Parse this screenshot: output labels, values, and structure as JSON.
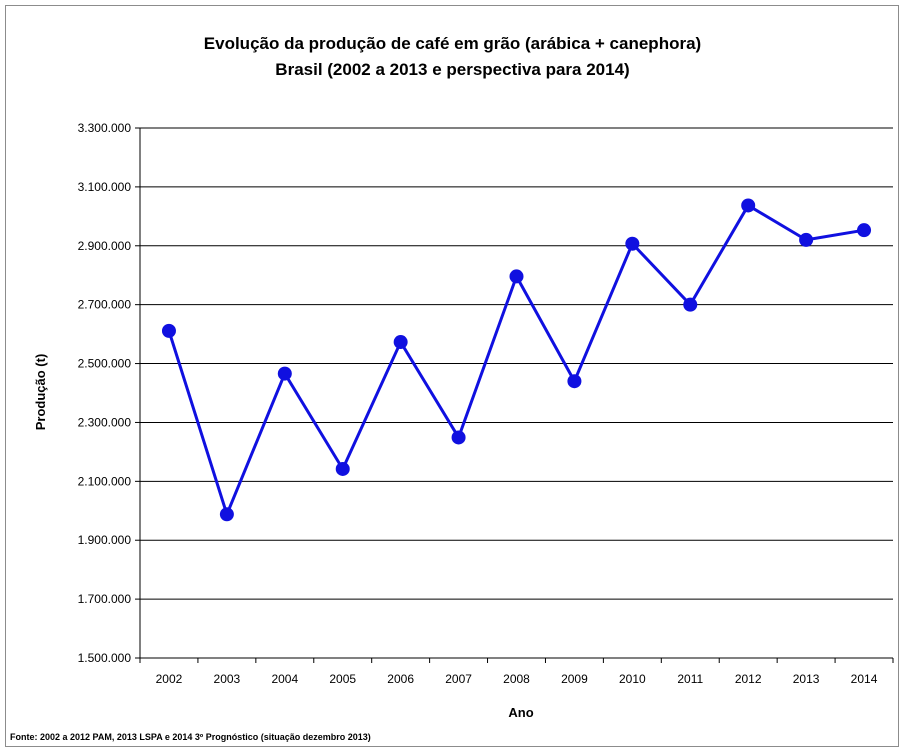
{
  "chart_data": {
    "type": "line",
    "title": "Evolução da produção de café em grão (arábica + canephora)",
    "subtitle": "Brasil (2002 a 2013 e perspectiva para 2014)",
    "xlabel": "Ano",
    "ylabel": "Produção (t)",
    "categories": [
      "2002",
      "2003",
      "2004",
      "2005",
      "2006",
      "2007",
      "2008",
      "2009",
      "2010",
      "2011",
      "2012",
      "2013",
      "2014"
    ],
    "series": [
      {
        "values": [
          2611000,
          1988000,
          2466000,
          2142000,
          2573000,
          2249000,
          2796000,
          2440000,
          2907000,
          2700000,
          3037000,
          2920000,
          2953000
        ],
        "color": "#1010e0"
      }
    ],
    "ylim": [
      1500000,
      3300000
    ],
    "yticks": [
      1500000,
      1700000,
      1900000,
      2100000,
      2300000,
      2500000,
      2700000,
      2900000,
      3100000,
      3300000
    ],
    "ytick_labels": [
      "1.500.000",
      "1.700.000",
      "1.900.000",
      "2.100.000",
      "2.300.000",
      "2.500.000",
      "2.700.000",
      "2.900.000",
      "3.100.000",
      "3.300.000"
    ],
    "grid": true,
    "legend": "none",
    "source": "Fonte: 2002 a 2012 PAM, 2013 LSPA e 2014 3º Prognóstico (situação dezembro 2013)"
  }
}
